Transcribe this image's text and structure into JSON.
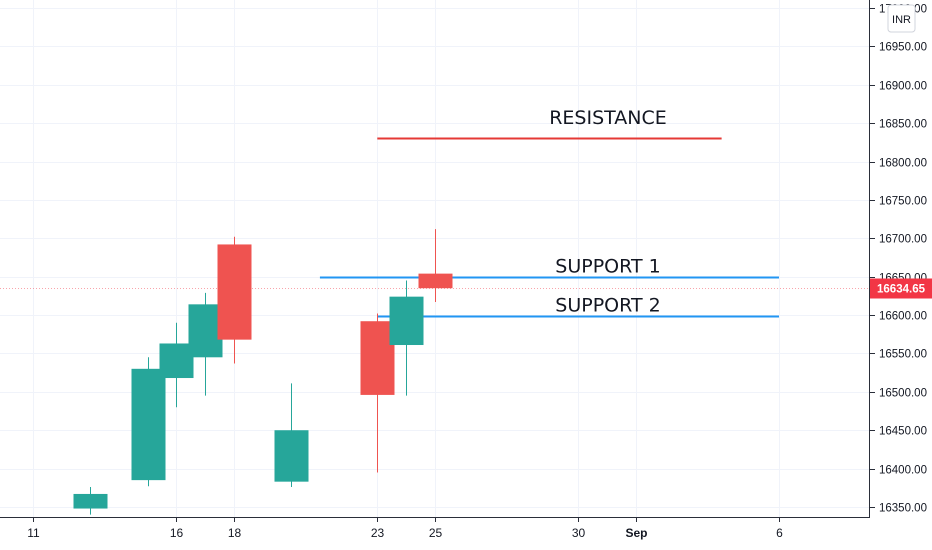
{
  "chart_data": {
    "type": "candlestick",
    "currency": "INR",
    "last_price_label": "16634.65",
    "last_price": 16634.65,
    "colors": {
      "up": "#26a69a",
      "down": "#ef5350",
      "resistance": "#e53935",
      "support": "#2196f3",
      "last_price": "#f23645",
      "grid": "#f0f3fa",
      "axis_text": "#131722"
    },
    "y_axis": {
      "range": [
        16335,
        17010
      ],
      "ticks": [
        16350,
        16400,
        16450,
        16500,
        16550,
        16600,
        16650,
        16700,
        16750,
        16800,
        16850,
        16900,
        16950,
        17000
      ],
      "tick_labels": [
        "16350.00",
        "16400.00",
        "16450.00",
        "16500.00",
        "16550.00",
        "16600.00",
        "16650.00",
        "16700.00",
        "16750.00",
        "16800.00",
        "16850.00",
        "16900.00",
        "16950.00",
        "17000.00"
      ]
    },
    "x_axis": {
      "range": [
        "2021-08-11",
        "2021-09-07"
      ],
      "ticks": [
        {
          "date": "2021-08-11",
          "label": "11",
          "bold": false
        },
        {
          "date": "2021-08-16",
          "label": "16",
          "bold": false
        },
        {
          "date": "2021-08-18",
          "label": "18",
          "bold": false
        },
        {
          "date": "2021-08-23",
          "label": "23",
          "bold": false
        },
        {
          "date": "2021-08-25",
          "label": "25",
          "bold": false
        },
        {
          "date": "2021-08-30",
          "label": "30",
          "bold": false
        },
        {
          "date": "2021-09-01",
          "label": "Sep",
          "bold": true
        },
        {
          "date": "2021-09-06",
          "label": "6",
          "bold": false
        }
      ]
    },
    "candles": [
      {
        "date": "2021-08-13",
        "open": 16348,
        "high": 16376,
        "low": 16340,
        "close": 16367
      },
      {
        "date": "2021-08-15",
        "open": 16385,
        "high": 16545,
        "low": 16377,
        "close": 16530
      },
      {
        "date": "2021-08-16",
        "open": 16518,
        "high": 16590,
        "low": 16480,
        "close": 16563
      },
      {
        "date": "2021-08-17",
        "open": 16545,
        "high": 16629,
        "low": 16495,
        "close": 16614
      },
      {
        "date": "2021-08-18",
        "open": 16692,
        "high": 16702,
        "low": 16537,
        "close": 16568
      },
      {
        "date": "2021-08-20",
        "open": 16383,
        "high": 16511,
        "low": 16376,
        "close": 16450
      },
      {
        "date": "2021-08-23",
        "open": 16592,
        "high": 16602,
        "low": 16395,
        "close": 16496
      },
      {
        "date": "2021-08-24",
        "open": 16561,
        "high": 16645,
        "low": 16495,
        "close": 16624
      },
      {
        "date": "2021-08-25",
        "open": 16654,
        "high": 16712,
        "low": 16617,
        "close": 16635
      }
    ],
    "levels": [
      {
        "label": "RESISTANCE",
        "price": 16831,
        "from": "2021-08-23",
        "to": "2021-09-04",
        "color": "#e53935"
      },
      {
        "label": "SUPPORT 1",
        "price": 16649,
        "from": "2021-08-21",
        "to": "2021-09-06",
        "color": "#2196f3"
      },
      {
        "label": "SUPPORT 2",
        "price": 16599,
        "from": "2021-08-23",
        "to": "2021-09-06",
        "color": "#2196f3"
      }
    ]
  }
}
